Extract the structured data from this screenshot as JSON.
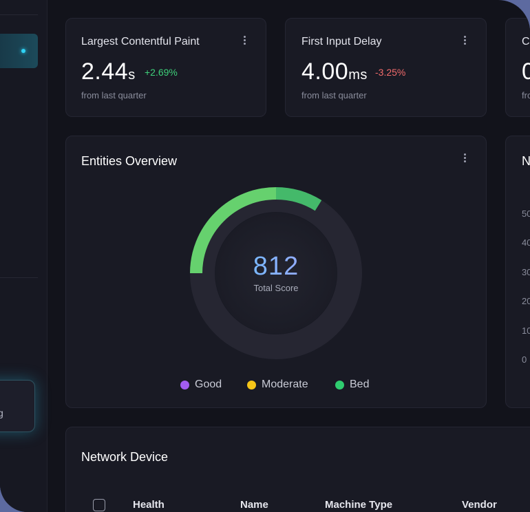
{
  "sidebar": {
    "card_label": "g"
  },
  "metrics": [
    {
      "title": "Largest Contentful Paint",
      "value": "2.44",
      "unit": "s",
      "change": "+2.69%",
      "subtitle": "from last quarter"
    },
    {
      "title": "First Input Delay",
      "value": "4.00",
      "unit": "ms",
      "change": "-3.25%",
      "subtitle": "from last quarter"
    },
    {
      "title": "Cu",
      "value": "0",
      "unit": "",
      "change": "",
      "subtitle": "fro"
    }
  ],
  "entities_overview": {
    "title": "Entities Overview",
    "score": "812",
    "score_label": "Total Score",
    "legend": [
      {
        "label": "Good",
        "color": "#a25cf0"
      },
      {
        "label": "Moderate",
        "color": "#f5c518"
      },
      {
        "label": "Bed",
        "color": "#2fcc6f"
      }
    ],
    "arc_colors": {
      "primary": "#66d16e",
      "secondary": "#44b96a",
      "track": "#262632"
    }
  },
  "side_chart": {
    "title": "N",
    "y_ticks": [
      "50",
      "40",
      "30",
      "20",
      "10",
      "0"
    ]
  },
  "network_device": {
    "title": "Network Device",
    "columns": [
      "Health",
      "Name",
      "Machine Type",
      "Vendor"
    ]
  },
  "colors": {
    "positive": "#3ed17a",
    "negative": "#f26b6b",
    "accent": "#2fd3f5"
  },
  "icons": {
    "menu": "kebab-vertical-icon",
    "status": "dot-icon"
  }
}
